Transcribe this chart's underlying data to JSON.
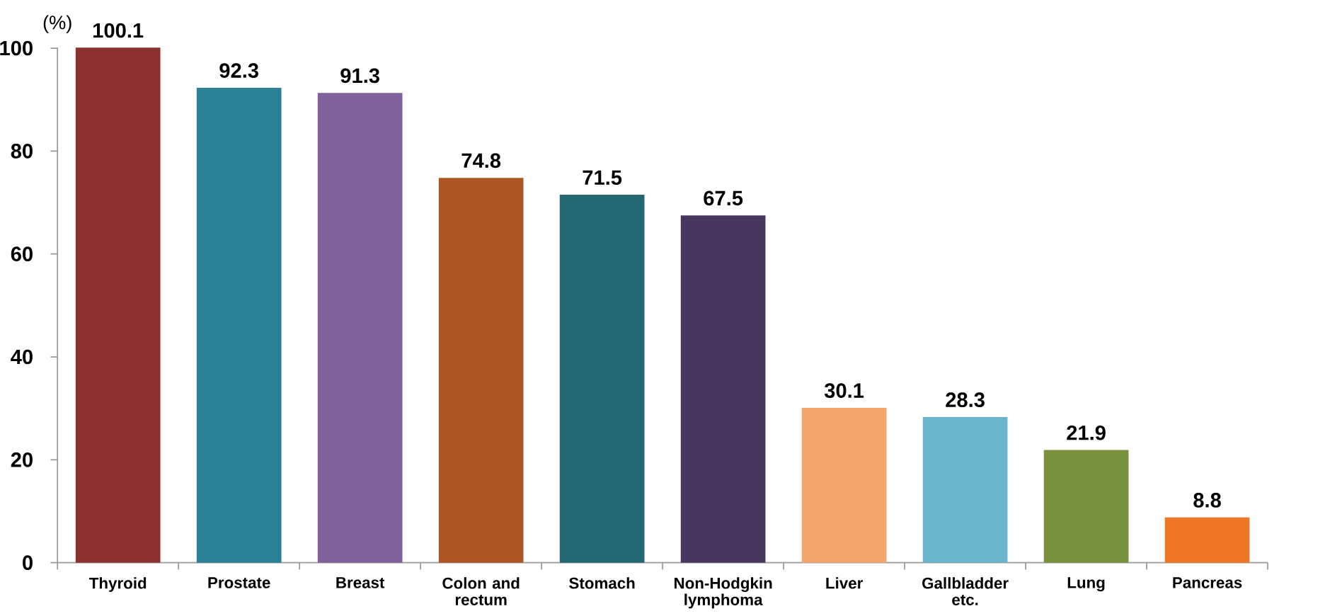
{
  "chart_data": {
    "type": "bar",
    "ylabel": "(%)",
    "categories": [
      "Thyroid",
      "Prostate",
      "Breast",
      "Colon and rectum",
      "Stomach",
      "Non-Hodgkin lymphoma",
      "Liver",
      "Gallbladder etc.",
      "Lung",
      "Pancreas"
    ],
    "values": [
      100.1,
      92.3,
      91.3,
      74.8,
      71.5,
      67.5,
      30.1,
      28.3,
      21.9,
      8.8
    ],
    "colors": [
      "#8b3230",
      "#2a8094",
      "#7f619b",
      "#ae5525",
      "#226772",
      "#47375e",
      "#f5a66c",
      "#6ab5cc",
      "#79903c",
      "#ef7624"
    ],
    "ylim": [
      0,
      100.1
    ],
    "yticks": [
      0,
      20,
      40,
      60,
      80,
      100
    ],
    "data_labels": true
  }
}
